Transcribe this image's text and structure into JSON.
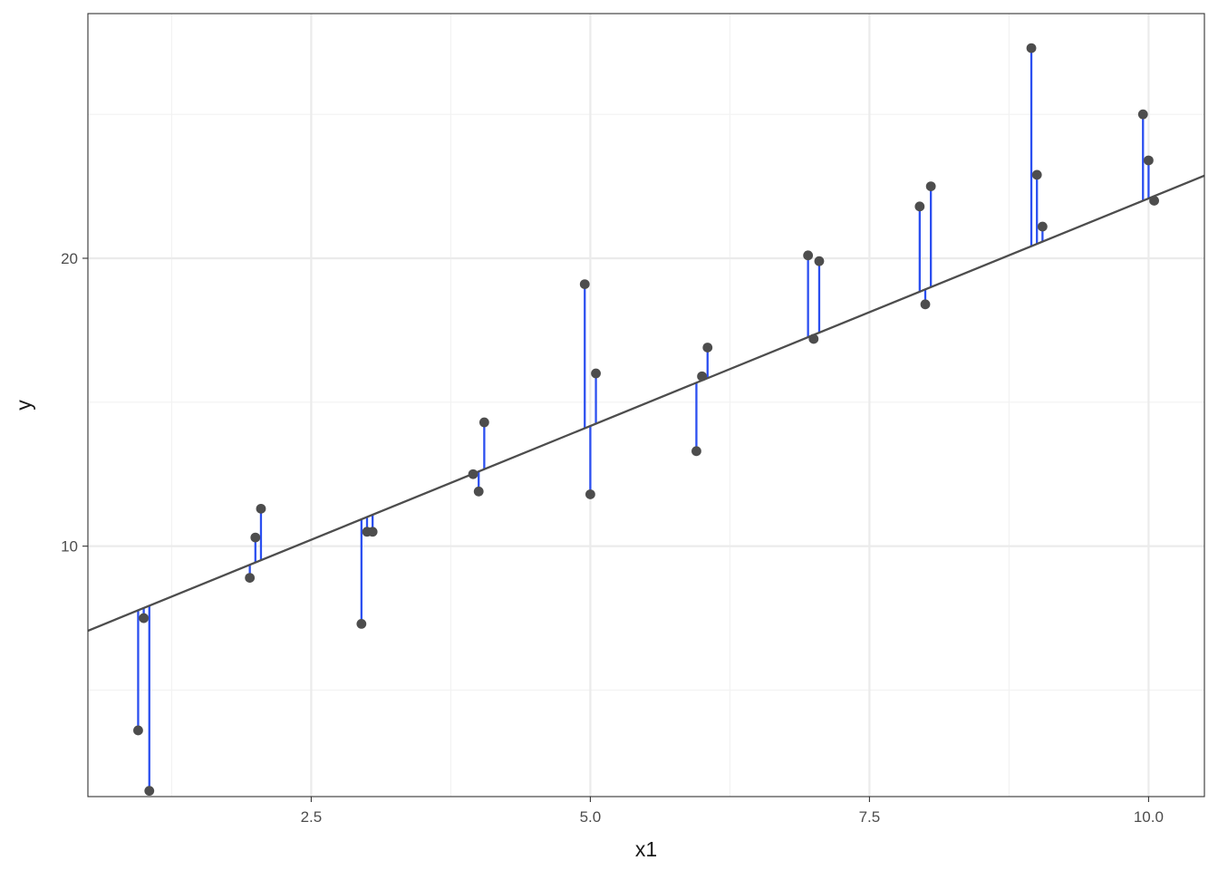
{
  "chart_data": {
    "type": "scatter",
    "title": "",
    "xlabel": "x1",
    "ylabel": "y",
    "xlim": [
      0.5,
      10.5
    ],
    "ylim": [
      1.3,
      28.5
    ],
    "x_ticks": [
      2.5,
      5.0,
      7.5,
      10.0
    ],
    "x_tick_labels": [
      "2.5",
      "5.0",
      "7.5",
      "10.0"
    ],
    "y_ticks": [
      10,
      20
    ],
    "y_tick_labels": [
      "10",
      "20"
    ],
    "grid": true,
    "legend": "none",
    "fit_line": {
      "intercept": 6.27,
      "slope": 1.581
    },
    "points": [
      {
        "x": 0.95,
        "y": 3.6
      },
      {
        "x": 1.0,
        "y": 7.5
      },
      {
        "x": 1.05,
        "y": 1.5
      },
      {
        "x": 1.95,
        "y": 8.9
      },
      {
        "x": 2.0,
        "y": 10.3
      },
      {
        "x": 2.05,
        "y": 11.3
      },
      {
        "x": 2.95,
        "y": 7.3
      },
      {
        "x": 3.0,
        "y": 10.5
      },
      {
        "x": 3.05,
        "y": 10.5
      },
      {
        "x": 3.95,
        "y": 12.5
      },
      {
        "x": 4.0,
        "y": 11.9
      },
      {
        "x": 4.05,
        "y": 14.3
      },
      {
        "x": 4.95,
        "y": 19.1
      },
      {
        "x": 5.0,
        "y": 11.8
      },
      {
        "x": 5.05,
        "y": 16.0
      },
      {
        "x": 5.95,
        "y": 13.3
      },
      {
        "x": 6.0,
        "y": 15.9
      },
      {
        "x": 6.05,
        "y": 16.9
      },
      {
        "x": 6.95,
        "y": 20.1
      },
      {
        "x": 7.0,
        "y": 17.2
      },
      {
        "x": 7.05,
        "y": 19.9
      },
      {
        "x": 7.95,
        "y": 21.8
      },
      {
        "x": 8.0,
        "y": 18.4
      },
      {
        "x": 8.05,
        "y": 22.5
      },
      {
        "x": 8.95,
        "y": 27.3
      },
      {
        "x": 9.0,
        "y": 22.9
      },
      {
        "x": 9.05,
        "y": 21.1
      },
      {
        "x": 9.95,
        "y": 25.0
      },
      {
        "x": 10.0,
        "y": 23.4
      },
      {
        "x": 10.05,
        "y": 22.0
      }
    ],
    "colors": {
      "points": "#4d4d4d",
      "residuals": "#2b4ff0",
      "fit_line": "#4d4d4d",
      "grid_major": "#ebebeb",
      "grid_minor": "#f2f2f2",
      "panel_border": "#333333"
    }
  }
}
